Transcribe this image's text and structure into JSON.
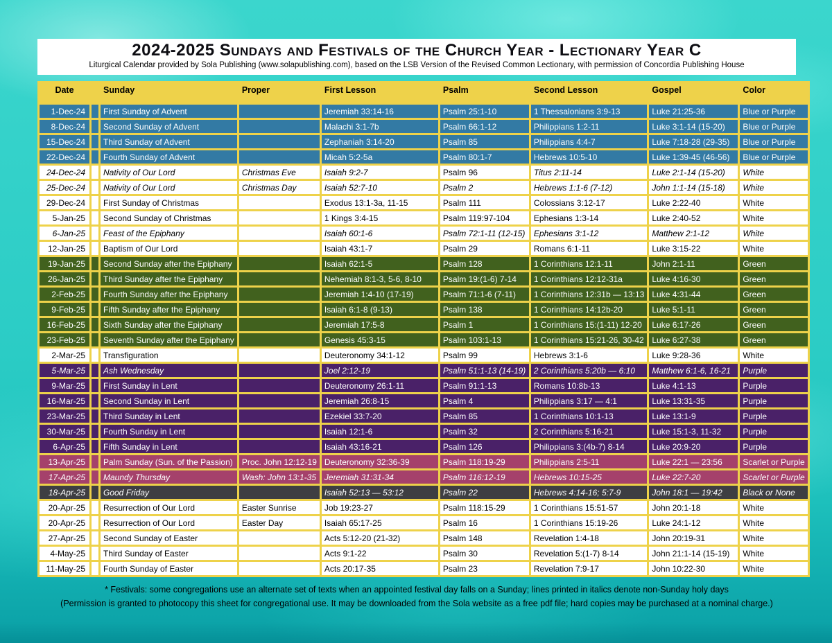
{
  "header": {
    "title": "2024-2025 Sundays and Festivals of the Church Year - Lectionary Year C",
    "subtitle": "Liturgical Calendar provided by Sola Publishing (www.solapublishing.com), based on the LSB Version of the Revised Common Lectionary, with permission of Concordia Publishing House"
  },
  "colors": {
    "table_grid": "#eed24a",
    "advent": {
      "bg": "#337aa4",
      "text": "#ffffff"
    },
    "white": {
      "bg": "#ffffff",
      "text": "#000000"
    },
    "green": {
      "bg": "#41611e",
      "text": "#ffffff"
    },
    "lent": {
      "bg": "#4a2168",
      "text": "#ffffff"
    },
    "scarlet": {
      "bg": "#a5416b",
      "text": "#ffffff"
    },
    "black": {
      "bg": "#3e3e42",
      "text": "#ffffff"
    }
  },
  "table": {
    "columns": [
      "Date",
      "Sunday",
      "Proper",
      "First Lesson",
      "Psalm",
      "Second Lesson",
      "Gospel",
      "Color"
    ],
    "rows": [
      {
        "date": "1-Dec-24",
        "sunday": "First Sunday of Advent",
        "proper": "",
        "first_lesson": "Jeremiah 33:14-16",
        "psalm": "Psalm 25:1-10",
        "second_lesson": "1 Thessalonians 3:9-13",
        "gospel": "Luke 21:25-36",
        "color": "Blue or Purple",
        "season": "advent",
        "italic": false
      },
      {
        "date": "8-Dec-24",
        "sunday": "Second Sunday of Advent",
        "proper": "",
        "first_lesson": "Malachi 3:1-7b",
        "psalm": "Psalm 66:1-12",
        "second_lesson": "Philippians 1:2-11",
        "gospel": "Luke 3:1-14 (15-20)",
        "color": "Blue or Purple",
        "season": "advent",
        "italic": false
      },
      {
        "date": "15-Dec-24",
        "sunday": "Third Sunday of Advent",
        "proper": "",
        "first_lesson": "Zephaniah 3:14-20",
        "psalm": "Psalm 85",
        "second_lesson": "Philippians 4:4-7",
        "gospel": "Luke 7:18-28 (29-35)",
        "color": "Blue or Purple",
        "season": "advent",
        "italic": false
      },
      {
        "date": "22-Dec-24",
        "sunday": "Fourth Sunday of Advent",
        "proper": "",
        "first_lesson": "Micah 5:2-5a",
        "psalm": "Psalm 80:1-7",
        "second_lesson": "Hebrews 10:5-10",
        "gospel": "Luke 1:39-45 (46-56)",
        "color": "Blue or Purple",
        "season": "advent",
        "italic": false
      },
      {
        "date": "24-Dec-24",
        "sunday": "Nativity of Our Lord",
        "proper": "Christmas Eve",
        "first_lesson": "Isaiah 9:2-7",
        "psalm": "Psalm 96",
        "second_lesson": "Titus 2:11-14",
        "gospel": "Luke 2:1-14 (15-20)",
        "color": "White",
        "season": "white",
        "italic": true,
        "psalm_upright": true
      },
      {
        "date": "25-Dec-24",
        "sunday": "Nativity of Our Lord",
        "proper": "Christmas Day",
        "first_lesson": "Isaiah 52:7-10",
        "psalm": "Psalm 2",
        "second_lesson": "Hebrews 1:1-6 (7-12)",
        "gospel": "John 1:1-14 (15-18)",
        "color": "White",
        "season": "white",
        "italic": true
      },
      {
        "date": "29-Dec-24",
        "sunday": "First Sunday of Christmas",
        "proper": "",
        "first_lesson": "Exodus 13:1-3a, 11-15",
        "psalm": "Psalm 111",
        "second_lesson": "Colossians 3:12-17",
        "gospel": "Luke 2:22-40",
        "color": "White",
        "season": "white",
        "italic": false
      },
      {
        "date": "5-Jan-25",
        "sunday": "Second Sunday of Christmas",
        "proper": "",
        "first_lesson": "1 Kings 3:4-15",
        "psalm": "Psalm 119:97-104",
        "second_lesson": "Ephesians 1:3-14",
        "gospel": "Luke 2:40-52",
        "color": "White",
        "season": "white",
        "italic": false
      },
      {
        "date": "6-Jan-25",
        "sunday": "Feast of the Epiphany",
        "proper": "",
        "first_lesson": "Isaiah 60:1-6",
        "psalm": "Psalm 72:1-11 (12-15)",
        "second_lesson": "Ephesians 3:1-12",
        "gospel": "Matthew 2:1-12",
        "color": "White",
        "season": "white",
        "italic": true
      },
      {
        "date": "12-Jan-25",
        "sunday": "Baptism of Our Lord",
        "proper": "",
        "first_lesson": "Isaiah 43:1-7",
        "psalm": "Psalm 29",
        "second_lesson": "Romans 6:1-11",
        "gospel": "Luke 3:15-22",
        "color": "White",
        "season": "white",
        "italic": false
      },
      {
        "date": "19-Jan-25",
        "sunday": "Second Sunday after the Epiphany",
        "proper": "",
        "first_lesson": "Isaiah 62:1-5",
        "psalm": "Psalm 128",
        "second_lesson": "1 Corinthians 12:1-11",
        "gospel": "John 2:1-11",
        "color": "Green",
        "season": "green",
        "italic": false
      },
      {
        "date": "26-Jan-25",
        "sunday": "Third Sunday after the Epiphany",
        "proper": "",
        "first_lesson": "Nehemiah 8:1-3, 5-6, 8-10",
        "psalm": "Psalm 19:(1-6) 7-14",
        "second_lesson": "1 Corinthians 12:12-31a",
        "gospel": "Luke 4:16-30",
        "color": "Green",
        "season": "green",
        "italic": false
      },
      {
        "date": "2-Feb-25",
        "sunday": "Fourth Sunday after the Epiphany",
        "proper": "",
        "first_lesson": "Jeremiah 1:4-10 (17-19)",
        "psalm": "Psalm 71:1-6 (7-11)",
        "second_lesson": "1 Corinthians 12:31b — 13:13",
        "gospel": "Luke 4:31-44",
        "color": "Green",
        "season": "green",
        "italic": false
      },
      {
        "date": "9-Feb-25",
        "sunday": "Fifth Sunday after the Epiphany",
        "proper": "",
        "first_lesson": "Isaiah 6:1-8 (9-13)",
        "psalm": "Psalm 138",
        "second_lesson": "1 Corinthians 14:12b-20",
        "gospel": "Luke 5:1-11",
        "color": "Green",
        "season": "green",
        "italic": false
      },
      {
        "date": "16-Feb-25",
        "sunday": "Sixth Sunday after the Epiphany",
        "proper": "",
        "first_lesson": "Jeremiah 17:5-8",
        "psalm": "Psalm 1",
        "second_lesson": "1 Corinthians 15:(1-11) 12-20",
        "gospel": "Luke 6:17-26",
        "color": "Green",
        "season": "green",
        "italic": false
      },
      {
        "date": "23-Feb-25",
        "sunday": "Seventh Sunday after the Epiphany",
        "proper": "",
        "first_lesson": "Genesis 45:3-15",
        "psalm": "Psalm 103:1-13",
        "second_lesson": "1 Corinthians 15:21-26, 30-42",
        "gospel": "Luke 6:27-38",
        "color": "Green",
        "season": "green",
        "italic": false
      },
      {
        "date": "2-Mar-25",
        "sunday": "Transfiguration",
        "proper": "",
        "first_lesson": "Deuteronomy 34:1-12",
        "psalm": "Psalm 99",
        "second_lesson": "Hebrews 3:1-6",
        "gospel": "Luke 9:28-36",
        "color": "White",
        "season": "white",
        "italic": false
      },
      {
        "date": "5-Mar-25",
        "sunday": "Ash Wednesday",
        "proper": "",
        "first_lesson": "Joel 2:12-19",
        "psalm": "Psalm 51:1-13 (14-19)",
        "second_lesson": "2 Corinthians 5:20b — 6:10",
        "gospel": "Matthew 6:1-6, 16-21",
        "color": "Purple",
        "season": "lent",
        "italic": true
      },
      {
        "date": "9-Mar-25",
        "sunday": "First Sunday in Lent",
        "proper": "",
        "first_lesson": "Deuteronomy 26:1-11",
        "psalm": "Psalm 91:1-13",
        "second_lesson": "Romans 10:8b-13",
        "gospel": "Luke 4:1-13",
        "color": "Purple",
        "season": "lent",
        "italic": false
      },
      {
        "date": "16-Mar-25",
        "sunday": "Second Sunday in Lent",
        "proper": "",
        "first_lesson": "Jeremiah 26:8-15",
        "psalm": "Psalm 4",
        "second_lesson": "Philippians 3:17 — 4:1",
        "gospel": "Luke 13:31-35",
        "color": "Purple",
        "season": "lent",
        "italic": false
      },
      {
        "date": "23-Mar-25",
        "sunday": "Third Sunday in Lent",
        "proper": "",
        "first_lesson": "Ezekiel 33:7-20",
        "psalm": "Psalm 85",
        "second_lesson": "1 Corinthians 10:1-13",
        "gospel": "Luke 13:1-9",
        "color": "Purple",
        "season": "lent",
        "italic": false
      },
      {
        "date": "30-Mar-25",
        "sunday": "Fourth Sunday in Lent",
        "proper": "",
        "first_lesson": "Isaiah 12:1-6",
        "psalm": "Psalm 32",
        "second_lesson": "2 Corinthians 5:16-21",
        "gospel": "Luke 15:1-3, 11-32",
        "color": "Purple",
        "season": "lent",
        "italic": false
      },
      {
        "date": "6-Apr-25",
        "sunday": "Fifth Sunday in Lent",
        "proper": "",
        "first_lesson": "Isaiah 43:16-21",
        "psalm": "Psalm 126",
        "second_lesson": "Philippians 3:(4b-7) 8-14",
        "gospel": "Luke 20:9-20",
        "color": "Purple",
        "season": "lent",
        "italic": false
      },
      {
        "date": "13-Apr-25",
        "sunday": "Palm Sunday (Sun. of the Passion)",
        "proper": "Proc. John 12:12-19",
        "first_lesson": "Deuteronomy 32:36-39",
        "psalm": "Psalm 118:19-29",
        "second_lesson": "Philippians 2:5-11",
        "gospel": "Luke 22:1 — 23:56",
        "color": "Scarlet or Purple",
        "season": "scarlet",
        "italic": false
      },
      {
        "date": "17-Apr-25",
        "sunday": "Maundy Thursday",
        "proper": "Wash: John 13:1-35",
        "first_lesson": "Jeremiah 31:31-34",
        "psalm": "Psalm 116:12-19",
        "second_lesson": "Hebrews 10:15-25",
        "gospel": "Luke 22:7-20",
        "color": "Scarlet or Purple",
        "season": "scarlet",
        "italic": true
      },
      {
        "date": "18-Apr-25",
        "sunday": "Good Friday",
        "proper": "",
        "first_lesson": "Isaiah 52:13 — 53:12",
        "psalm": "Psalm 22",
        "second_lesson": "Hebrews 4:14-16; 5:7-9",
        "gospel": "John 18:1 — 19:42",
        "color": "Black or None",
        "season": "black",
        "italic": true
      },
      {
        "date": "20-Apr-25",
        "sunday": "Resurrection of Our Lord",
        "proper": "Easter Sunrise",
        "first_lesson": "Job 19:23-27",
        "psalm": "Psalm 118:15-29",
        "second_lesson": "1 Corinthians 15:51-57",
        "gospel": "John 20:1-18",
        "color": "White",
        "season": "white",
        "italic": false
      },
      {
        "date": "20-Apr-25",
        "sunday": "Resurrection of Our Lord",
        "proper": "Easter Day",
        "first_lesson": "Isaiah 65:17-25",
        "psalm": "Psalm 16",
        "second_lesson": "1 Corinthians 15:19-26",
        "gospel": "Luke 24:1-12",
        "color": "White",
        "season": "white",
        "italic": false
      },
      {
        "date": "27-Apr-25",
        "sunday": "Second Sunday of Easter",
        "proper": "",
        "first_lesson": "Acts 5:12-20 (21-32)",
        "psalm": "Psalm 148",
        "second_lesson": "Revelation 1:4-18",
        "gospel": "John 20:19-31",
        "color": "White",
        "season": "white",
        "italic": false
      },
      {
        "date": "4-May-25",
        "sunday": "Third Sunday of Easter",
        "proper": "",
        "first_lesson": "Acts 9:1-22",
        "psalm": "Psalm 30",
        "second_lesson": "Revelation 5:(1-7) 8-14",
        "gospel": "John 21:1-14 (15-19)",
        "color": "White",
        "season": "white",
        "italic": false
      },
      {
        "date": "11-May-25",
        "sunday": "Fourth Sunday of Easter",
        "proper": "",
        "first_lesson": "Acts 20:17-35",
        "psalm": "Psalm 23",
        "second_lesson": "Revelation 7:9-17",
        "gospel": "John 10:22-30",
        "color": "White",
        "season": "white",
        "italic": false
      }
    ]
  },
  "footer": {
    "line1": "* Festivals: some congregations use an alternate set of texts when an appointed festival day falls on a Sunday; lines printed in italics denote non-Sunday holy days",
    "line2": "(Permission is granted to photocopy this sheet for congregational use. It may be downloaded from the Sola website as a free pdf file; hard copies may be purchased at a nominal charge.)"
  }
}
